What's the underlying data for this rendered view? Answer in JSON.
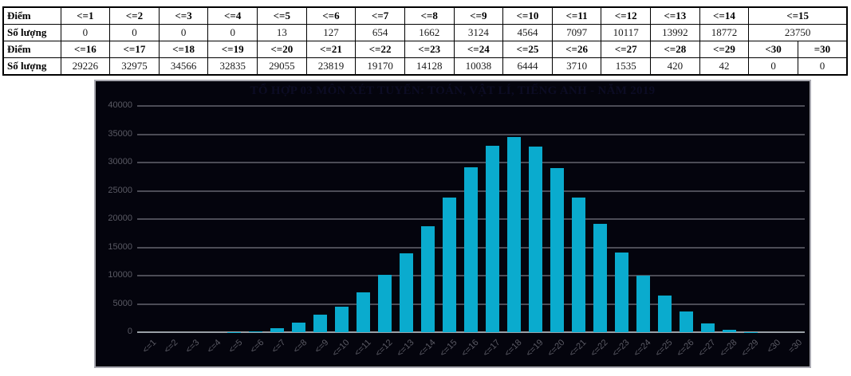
{
  "score_table": {
    "rows": [
      {
        "label": "Điểm",
        "header": true,
        "cells": [
          {
            "t": "<=1"
          },
          {
            "t": "<=2"
          },
          {
            "t": "<=3"
          },
          {
            "t": "<=4"
          },
          {
            "t": "<=5"
          },
          {
            "t": "<=6"
          },
          {
            "t": "<=7"
          },
          {
            "t": "<=8"
          },
          {
            "t": "<=9"
          },
          {
            "t": "<=10"
          },
          {
            "t": "<=11"
          },
          {
            "t": "<=12"
          },
          {
            "t": "<=13"
          },
          {
            "t": "<=14"
          },
          {
            "t": "<=15",
            "span": 2
          }
        ]
      },
      {
        "label": "Số lượng",
        "header": false,
        "cells": [
          {
            "t": "0"
          },
          {
            "t": "0"
          },
          {
            "t": "0"
          },
          {
            "t": "0"
          },
          {
            "t": "13"
          },
          {
            "t": "127"
          },
          {
            "t": "654"
          },
          {
            "t": "1662"
          },
          {
            "t": "3124"
          },
          {
            "t": "4564"
          },
          {
            "t": "7097"
          },
          {
            "t": "10117"
          },
          {
            "t": "13992"
          },
          {
            "t": "18772"
          },
          {
            "t": "23750",
            "span": 2
          }
        ]
      },
      {
        "label": "Điểm",
        "header": true,
        "cells": [
          {
            "t": "<=16"
          },
          {
            "t": "<=17"
          },
          {
            "t": "<=18"
          },
          {
            "t": "<=19"
          },
          {
            "t": "<=20"
          },
          {
            "t": "<=21"
          },
          {
            "t": "<=22"
          },
          {
            "t": "<=23"
          },
          {
            "t": "<=24"
          },
          {
            "t": "<=25"
          },
          {
            "t": "<=26"
          },
          {
            "t": "<=27"
          },
          {
            "t": "<=28"
          },
          {
            "t": "<=29"
          },
          {
            "t": "<30"
          },
          {
            "t": "=30"
          }
        ]
      },
      {
        "label": "Số lượng",
        "header": false,
        "cells": [
          {
            "t": "29226"
          },
          {
            "t": "32975"
          },
          {
            "t": "34566"
          },
          {
            "t": "32835"
          },
          {
            "t": "29055"
          },
          {
            "t": "23819"
          },
          {
            "t": "19170"
          },
          {
            "t": "14128"
          },
          {
            "t": "10038"
          },
          {
            "t": "6444"
          },
          {
            "t": "3710"
          },
          {
            "t": "1535"
          },
          {
            "t": "420"
          },
          {
            "t": "42"
          },
          {
            "t": "0"
          },
          {
            "t": "0"
          }
        ]
      }
    ]
  },
  "chart_data": {
    "type": "bar",
    "title": "TỔ HỢP 03 MÔN XÉT TUYỂN: TOÁN, VẬT LÍ, TIẾNG ANH - NĂM 2019",
    "categories": [
      "<=1",
      "<=2",
      "<=3",
      "<=4",
      "<=5",
      "<=6",
      "<=7",
      "<=8",
      "<=9",
      "<=10",
      "<=11",
      "<=12",
      "<=13",
      "<=14",
      "<=15",
      "<=16",
      "<=17",
      "<=18",
      "<=19",
      "<=20",
      "<=21",
      "<=22",
      "<=23",
      "<=24",
      "<=25",
      "<=26",
      "<=27",
      "<=28",
      "<=29",
      "<30",
      "=30"
    ],
    "values": [
      0,
      0,
      0,
      0,
      13,
      127,
      654,
      1662,
      3124,
      4564,
      7097,
      10117,
      13992,
      18772,
      23750,
      29226,
      32975,
      34566,
      32835,
      29055,
      23819,
      19170,
      14128,
      10038,
      6444,
      3710,
      1535,
      420,
      42,
      0,
      0
    ],
    "xlabel": "",
    "ylabel": "",
    "ylim": [
      0,
      40000
    ],
    "yticks": [
      0,
      5000,
      10000,
      15000,
      20000,
      25000,
      30000,
      35000,
      40000
    ],
    "grid": true,
    "legend": "none",
    "colors": {
      "bar": "#0aabce",
      "plot_background": "#04040d",
      "gridline": "#4c4c56",
      "baseline": "#9aa0a6",
      "tick_label": "#5a5a64",
      "title_text": "#0c0c24"
    }
  }
}
